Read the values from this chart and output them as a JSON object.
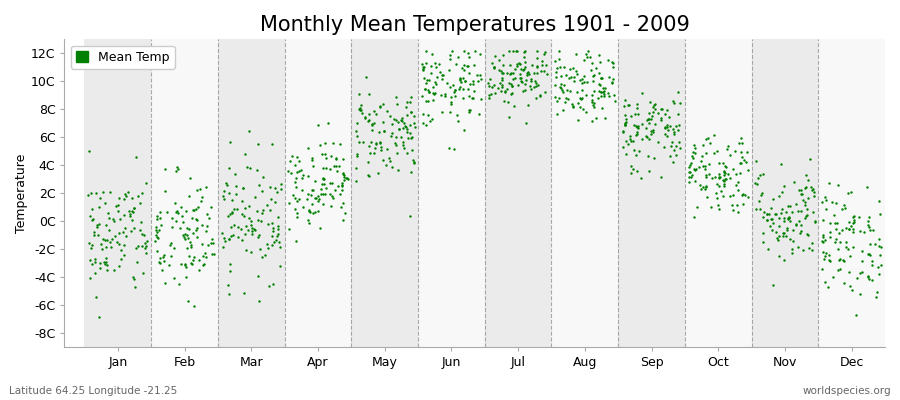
{
  "title": "Monthly Mean Temperatures 1901 - 2009",
  "ylabel": "Temperature",
  "subtitle_left": "Latitude 64.25 Longitude -21.25",
  "subtitle_right": "worldspecies.org",
  "legend_label": "Mean Temp",
  "ytick_labels": [
    "12C",
    "10C",
    "8C",
    "6C",
    "4C",
    "2C",
    "0C",
    "-2C",
    "-4C",
    "-6C",
    "-8C"
  ],
  "ytick_values": [
    12,
    10,
    8,
    6,
    4,
    2,
    0,
    -2,
    -4,
    -6,
    -8
  ],
  "ylim": [
    -9,
    13
  ],
  "months": [
    "Jan",
    "Feb",
    "Mar",
    "Apr",
    "May",
    "Jun",
    "Jul",
    "Aug",
    "Sep",
    "Oct",
    "Nov",
    "Dec"
  ],
  "month_means": [
    -1.0,
    -1.2,
    0.3,
    2.8,
    6.3,
    9.5,
    10.5,
    9.5,
    6.5,
    3.5,
    0.5,
    -1.5
  ],
  "month_stds": [
    2.2,
    2.3,
    2.2,
    1.6,
    1.7,
    1.5,
    1.2,
    1.2,
    1.5,
    1.5,
    1.8,
    2.0
  ],
  "n_years": 109,
  "dot_color": "#008000",
  "dot_size": 3,
  "bg_color_light": "#ebebeb",
  "bg_color_white": "#f8f8f8",
  "grid_color": "#888888",
  "title_fontsize": 15,
  "axis_fontsize": 9,
  "tick_fontsize": 9,
  "legend_fontsize": 9
}
